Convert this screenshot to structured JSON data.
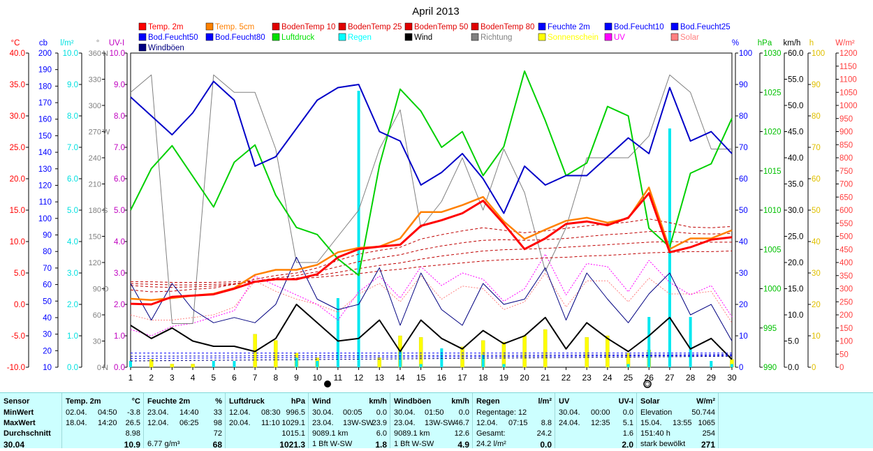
{
  "chart_data": {
    "type": "line",
    "title": "April 2013",
    "x": [
      1,
      2,
      3,
      4,
      5,
      6,
      7,
      8,
      9,
      10,
      11,
      12,
      13,
      14,
      15,
      16,
      17,
      18,
      19,
      20,
      21,
      22,
      23,
      24,
      25,
      26,
      27,
      28,
      29,
      30
    ],
    "legend": [
      {
        "name": "Temp. 2m",
        "color": "#ff0000"
      },
      {
        "name": "Temp. 5cm",
        "color": "#ff8000"
      },
      {
        "name": "BodenTemp 10",
        "color": "#e00000"
      },
      {
        "name": "BodenTemp 25",
        "color": "#e00000"
      },
      {
        "name": "BodenTemp 50",
        "color": "#e00000"
      },
      {
        "name": "BodenTemp 80",
        "color": "#e00000"
      },
      {
        "name": "Feuchte 2m",
        "color": "#0000ff"
      },
      {
        "name": "Bod.Feucht10",
        "color": "#0000ff"
      },
      {
        "name": "Bod.Feucht25",
        "color": "#0000ff"
      },
      {
        "name": "Bod.Feucht50",
        "color": "#0000ff"
      },
      {
        "name": "Bod.Feucht80",
        "color": "#0000ff"
      },
      {
        "name": "Luftdruck",
        "color": "#00e000"
      },
      {
        "name": "Regen",
        "color": "#00ffff"
      },
      {
        "name": "Wind",
        "color": "#000000"
      },
      {
        "name": "Richtung",
        "color": "#808080"
      },
      {
        "name": "Sonnenschein",
        "color": "#ffff00"
      },
      {
        "name": "UV",
        "color": "#ff00ff"
      },
      {
        "name": "Solar",
        "color": "#ff8080"
      },
      {
        "name": "Windböen",
        "color": "#000080"
      }
    ],
    "axes": {
      "temp": {
        "label": "°C",
        "color": "#ff0000",
        "min": -10,
        "max": 40,
        "ticks": [
          "-10.0",
          "-5.0",
          "0.0",
          "5.0",
          "10.0",
          "15.0",
          "20.0",
          "25.0",
          "30.0",
          "35.0",
          "40.0"
        ]
      },
      "cb": {
        "label": "cb",
        "color": "#0000ff",
        "ticks": [
          "10",
          "20",
          "30",
          "40",
          "50",
          "60",
          "70",
          "80",
          "90",
          "100",
          "110",
          "120",
          "130",
          "140",
          "150",
          "160",
          "170",
          "180",
          "190",
          "200"
        ]
      },
      "rain": {
        "label": "l/m²",
        "color": "#00e0e0",
        "ticks": [
          "0.0",
          "1.0",
          "2.0",
          "3.0",
          "4.0",
          "5.0",
          "6.0",
          "7.0",
          "8.0",
          "9.0",
          "10.0"
        ]
      },
      "dir": {
        "label": "°",
        "color": "#808080",
        "ticks": [
          "0",
          "30",
          "60",
          "90",
          "120",
          "150",
          "180",
          "210",
          "240",
          "270",
          "300",
          "330",
          "360"
        ],
        "compass": {
          "0": "N",
          "90": "O",
          "180": "S",
          "270": "W",
          "360": "N"
        }
      },
      "uvi": {
        "label": "UV-I",
        "color": "#c000c0",
        "ticks": [
          "0.0",
          "1.0",
          "2.0",
          "3.0",
          "4.0",
          "5.0",
          "6.0",
          "7.0",
          "8.0",
          "9.0",
          "10.0"
        ]
      },
      "hum": {
        "label": "%",
        "color": "#0000ff",
        "ticks": [
          "0",
          "10",
          "20",
          "30",
          "40",
          "50",
          "60",
          "70",
          "80",
          "90",
          "100"
        ]
      },
      "press": {
        "label": "hPa",
        "color": "#00c000",
        "min": 990,
        "max": 1030,
        "ticks": [
          "990",
          "995",
          "1000",
          "1005",
          "1010",
          "1015",
          "1020",
          "1025",
          "1030"
        ]
      },
      "wind": {
        "label": "km/h",
        "color": "#000000",
        "ticks": [
          "0.0",
          "5.0",
          "10.0",
          "15.0",
          "20.0",
          "25.0",
          "30.0",
          "35.0",
          "40.0",
          "45.0",
          "50.0",
          "55.0",
          "60.0"
        ]
      },
      "sun": {
        "label": "h",
        "color": "#e0c000",
        "ticks": [
          "0",
          "10",
          "20",
          "30",
          "40",
          "50",
          "60",
          "70",
          "80",
          "90",
          "100"
        ]
      },
      "solar": {
        "label": "W/m²",
        "color": "#ff4040",
        "ticks": [
          "0",
          "50",
          "100",
          "150",
          "200",
          "250",
          "300",
          "350",
          "400",
          "450",
          "500",
          "550",
          "600",
          "650",
          "700",
          "750",
          "800",
          "850",
          "900",
          "950",
          "1000",
          "1050",
          "1100",
          "1150",
          "1200"
        ]
      }
    },
    "series": [
      {
        "name": "Temp. 2m",
        "axis": "temp",
        "values": [
          0.1,
          0.0,
          1.2,
          1.4,
          1.6,
          2.5,
          3.6,
          4.0,
          4.0,
          4.8,
          7.5,
          8.8,
          9.2,
          9.5,
          12.5,
          13.4,
          14.5,
          16.5,
          12.8,
          8.8,
          10.5,
          12.8,
          13.2,
          12.6,
          13.8,
          17.7,
          8.3,
          9.1,
          10.3,
          10.7
        ],
        "color": "#ff0000",
        "width": 3
      },
      {
        "name": "Temp. 5cm",
        "axis": "temp",
        "values": [
          0.9,
          0.7,
          1.0,
          1.4,
          1.7,
          2.6,
          4.7,
          5.5,
          5.5,
          6.3,
          8.3,
          9.0,
          9.2,
          10.5,
          14.7,
          14.7,
          15.8,
          17.1,
          13.2,
          10.4,
          11.9,
          13.3,
          13.8,
          13.0,
          13.7,
          18.6,
          8.8,
          10.5,
          10.5,
          11.8
        ],
        "color": "#ff8000",
        "width": 2.5
      },
      {
        "name": "BodenTemp 10",
        "axis": "temp",
        "values": [
          2.3,
          2.0,
          2.1,
          2.4,
          2.6,
          3.2,
          4.0,
          4.6,
          5.0,
          5.8,
          7.0,
          8.0,
          8.6,
          9.1,
          10.4,
          11.1,
          11.7,
          12.2,
          11.8,
          11.4,
          11.7,
          12.1,
          12.5,
          12.8,
          13.1,
          13.6,
          13.0,
          12.3,
          12.2,
          12.4
        ],
        "color": "#c00000",
        "width": 1,
        "dash": "4,3"
      },
      {
        "name": "BodenTemp 25",
        "axis": "temp",
        "values": [
          3.0,
          2.8,
          2.7,
          2.8,
          2.9,
          3.2,
          3.7,
          4.2,
          4.6,
          5.2,
          6.0,
          6.8,
          7.4,
          7.9,
          8.7,
          9.3,
          9.8,
          10.2,
          10.3,
          10.2,
          10.3,
          10.5,
          10.8,
          11.1,
          11.3,
          11.6,
          11.6,
          11.3,
          11.2,
          11.3
        ],
        "color": "#c00000",
        "width": 1,
        "dash": "4,3"
      },
      {
        "name": "BodenTemp 50",
        "axis": "temp",
        "values": [
          3.3,
          3.2,
          3.1,
          3.1,
          3.2,
          3.3,
          3.6,
          3.9,
          4.2,
          4.6,
          5.1,
          5.7,
          6.2,
          6.6,
          7.2,
          7.7,
          8.1,
          8.5,
          8.7,
          8.8,
          8.9,
          9.1,
          9.3,
          9.5,
          9.7,
          9.9,
          10.0,
          9.9,
          9.9,
          9.9
        ],
        "color": "#c00000",
        "width": 1,
        "dash": "4,3"
      },
      {
        "name": "BodenTemp 80",
        "axis": "temp",
        "values": [
          3.6,
          3.6,
          3.5,
          3.5,
          3.5,
          3.6,
          3.7,
          3.9,
          4.1,
          4.3,
          4.6,
          4.9,
          5.3,
          5.6,
          6.0,
          6.3,
          6.6,
          6.9,
          7.1,
          7.2,
          7.4,
          7.5,
          7.7,
          7.8,
          8.0,
          8.2,
          8.3,
          8.4,
          8.4,
          8.5
        ],
        "color": "#c00000",
        "width": 1,
        "dash": "4,3"
      },
      {
        "name": "Feuchte 2m",
        "axis": "hum",
        "values": [
          86,
          80,
          74,
          81,
          91,
          85,
          64,
          67,
          76,
          85,
          89,
          90,
          75,
          72,
          58,
          62,
          68,
          60,
          49,
          64,
          58,
          61,
          61,
          67,
          73,
          68,
          89,
          72,
          75,
          68
        ],
        "color": "#0000c8",
        "width": 2
      },
      {
        "name": "Luftdruck",
        "axis": "press",
        "values": [
          1010,
          1015.3,
          1018.2,
          1014.3,
          1010.4,
          1016.1,
          1018.3,
          1011.9,
          1007.8,
          1006.9,
          1003.8,
          1001.7,
          1015.7,
          1025.4,
          1022.6,
          1018.0,
          1020.0,
          1014.4,
          1018.1,
          1027.7,
          1021.4,
          1014.4,
          1016.0,
          1023.2,
          1022.0,
          1007.7,
          1005.3,
          1014.7,
          1015.9,
          1021.7
        ],
        "color": "#00d000",
        "width": 2
      },
      {
        "name": "Richtung",
        "axis": "dir",
        "values": [
          315,
          335,
          50,
          50,
          335,
          315,
          315,
          250,
          120,
          120,
          150,
          180,
          250,
          295,
          160,
          190,
          240,
          180,
          250,
          200,
          110,
          160,
          240,
          240,
          240,
          265,
          335,
          315,
          250,
          250
        ],
        "color": "#808080",
        "width": 1
      },
      {
        "name": "Wind",
        "axis": "wind",
        "values": [
          8.0,
          5.5,
          7.5,
          5.0,
          4.0,
          4.0,
          3.0,
          5.5,
          12.0,
          8.5,
          5.0,
          5.5,
          9.0,
          3.0,
          9.0,
          5.5,
          3.5,
          7.0,
          4.5,
          6.0,
          9.5,
          3.5,
          8.5,
          5.5,
          3.0,
          6.0,
          9.5,
          3.5,
          5.5,
          1.5
        ],
        "color": "#000000",
        "width": 2
      },
      {
        "name": "Windböen",
        "axis": "wind",
        "values": [
          16,
          9,
          16,
          11,
          8.5,
          9.5,
          8.5,
          12,
          21,
          13,
          11,
          12,
          19,
          8,
          18,
          11,
          8,
          16,
          12,
          13,
          19,
          9,
          18,
          13,
          8.5,
          14,
          18,
          10,
          12,
          5
        ],
        "color": "#000080",
        "width": 1
      },
      {
        "name": "UV",
        "axis": "uvi",
        "values": [
          1.2,
          1.0,
          1.3,
          1.4,
          1.6,
          1.8,
          2.9,
          2.6,
          2.3,
          2.0,
          1.5,
          2.4,
          2.9,
          2.2,
          3.2,
          2.6,
          3.0,
          2.8,
          2.1,
          2.5,
          3.6,
          2.3,
          3.3,
          3.2,
          2.4,
          3.4,
          2.7,
          2.3,
          2.6,
          1.6
        ],
        "color": "#ff00ff",
        "width": 1,
        "dash": "2,2"
      },
      {
        "name": "Solar",
        "axis": "solar",
        "values": [
          200,
          180,
          180,
          190,
          200,
          230,
          330,
          290,
          260,
          240,
          210,
          280,
          320,
          250,
          350,
          260,
          310,
          300,
          220,
          250,
          360,
          230,
          330,
          330,
          250,
          340,
          280,
          280,
          290,
          170
        ],
        "color": "#ff8080",
        "width": 1,
        "dash": "2,2"
      }
    ],
    "bars": [
      {
        "name": "Regen",
        "axis": "rain",
        "color": "#00e8f0",
        "values": [
          0.2,
          0,
          0,
          0,
          0.2,
          0.2,
          0,
          0,
          0.3,
          0.2,
          2.2,
          8.8,
          0,
          0.5,
          0.1,
          0.6,
          0,
          0.4,
          0.1,
          0,
          0,
          0,
          0,
          0,
          0.1,
          1.6,
          7.6,
          1.6,
          0.2,
          0.1
        ]
      },
      {
        "name": "Sonnenschein",
        "axis": "sun",
        "color": "#ffff00",
        "values": [
          0,
          2.5,
          1,
          1,
          0,
          0,
          10.5,
          8.5,
          4.5,
          3,
          0,
          0,
          3,
          10,
          9.5,
          0,
          6.5,
          8.5,
          8,
          10,
          12,
          0,
          9.5,
          10,
          4.5,
          5.5,
          0,
          0,
          0,
          2.5
        ]
      }
    ],
    "xlim": [
      1,
      30
    ],
    "grid": false,
    "legend_position": "top"
  },
  "table": {
    "sensor": {
      "header": "Sensor",
      "rows": [
        "MinWert",
        "MaxWert",
        "Durchschnitt",
        "30.04"
      ]
    },
    "temp": {
      "header": "Temp. 2m",
      "unit": "°C",
      "rows": [
        [
          "02.04.",
          "04:50",
          "-3.8"
        ],
        [
          "18.04.",
          "14:20",
          "26.5"
        ],
        [
          "",
          "",
          "8.98"
        ],
        [
          "",
          "",
          "10.9"
        ]
      ]
    },
    "feuchte": {
      "header": "Feuchte 2m",
      "unit": "%",
      "rows": [
        [
          "23.04.",
          "14:40",
          "33"
        ],
        [
          "12.04.",
          "06:25",
          "98"
        ],
        [
          "",
          "",
          "72"
        ],
        [
          "6.77 g/m³",
          "",
          "68"
        ]
      ]
    },
    "luftdruck": {
      "header": "Luftdruck",
      "unit": "hPa",
      "rows": [
        [
          "12.04.",
          "08:30",
          "996.5"
        ],
        [
          "20.04.",
          "11:10",
          "1029.1"
        ],
        [
          "",
          "",
          "1015.1"
        ],
        [
          "",
          "",
          "1021.3"
        ]
      ]
    },
    "wind": {
      "header": "Wind",
      "unit": "km/h",
      "rows": [
        [
          "30.04.",
          "00:05",
          "0.0"
        ],
        [
          "23.04.",
          "13W-SW",
          "23.9"
        ],
        [
          "9089.1 km",
          "",
          "6.0"
        ],
        [
          "1 Bft W-SW",
          "",
          "1.8"
        ]
      ]
    },
    "windboeen": {
      "header": "Windböen",
      "unit": "km/h",
      "rows": [
        [
          "30.04.",
          "01:50",
          "0.0"
        ],
        [
          "23.04.",
          "13W-SW",
          "46.7"
        ],
        [
          "9089.1 km",
          "",
          "12.6"
        ],
        [
          "1 Bft W-SW",
          "",
          "4.9"
        ]
      ]
    },
    "regen": {
      "header": "Regen",
      "unit": "l/m²",
      "rows": [
        [
          "Regentage: 12",
          "",
          ""
        ],
        [
          "12.04.",
          "07:15",
          "8.8"
        ],
        [
          "Gesamt:",
          "",
          "24.2"
        ],
        [
          "24.2 l/m²",
          "",
          "0.0"
        ]
      ]
    },
    "uv": {
      "header": "UV",
      "unit": "UV-I",
      "rows": [
        [
          "30.04.",
          "00:00",
          "0.0"
        ],
        [
          "24.04.",
          "12:35",
          "5.1"
        ],
        [
          "",
          "",
          "1.6"
        ],
        [
          "",
          "",
          "2.0"
        ]
      ]
    },
    "solar": {
      "header": "Solar",
      "unit": "W/m²",
      "rows": [
        [
          "Elevation",
          "",
          "50.744"
        ],
        [
          "15.04.",
          "13:55",
          "1065"
        ],
        [
          "151:40 h",
          "",
          "254"
        ],
        [
          "stark bewölkt",
          "",
          "271"
        ]
      ]
    }
  }
}
